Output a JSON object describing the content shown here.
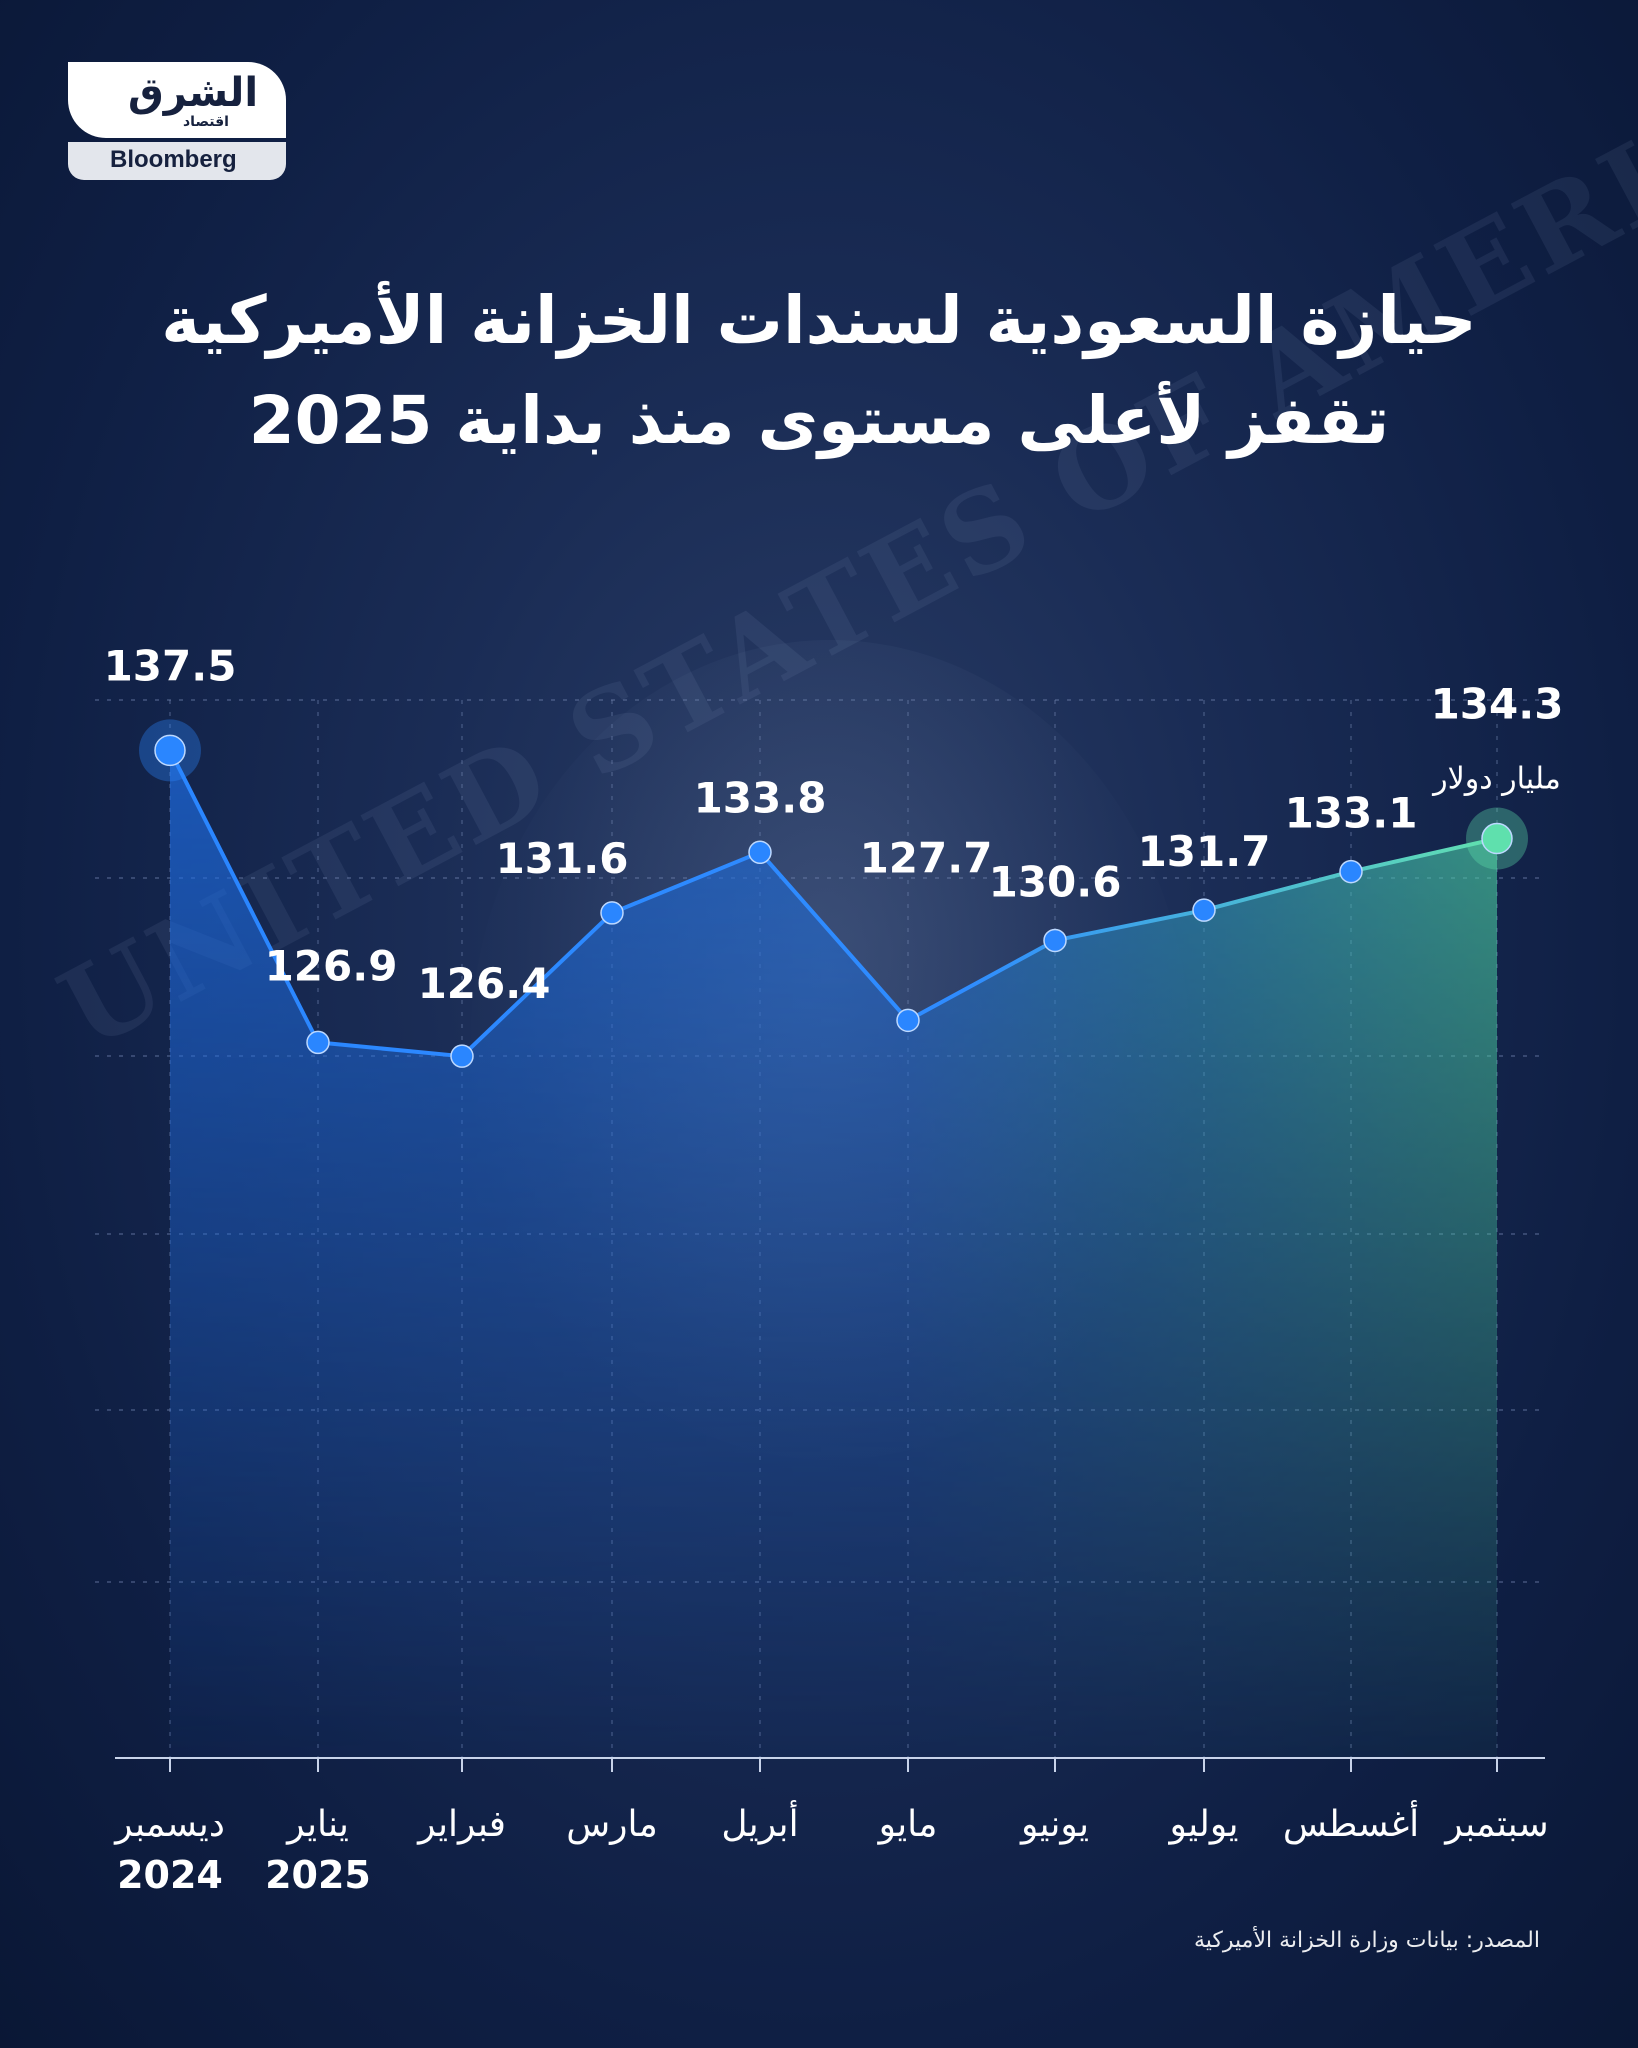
{
  "logo": {
    "arabic": "الشرق",
    "sub": "اقتصاد",
    "english": "Bloomberg"
  },
  "background": {
    "banknote_text": "UNITED STATES OF AMERICA"
  },
  "title": {
    "line1": "حيازة السعودية لسندات الخزانة الأميركية",
    "line2": "تقفز لأعلى مستوى منذ بداية 2025"
  },
  "source": "المصدر: بيانات وزارة الخزانة الأميركية",
  "chart_data": {
    "type": "line",
    "categories": [
      "ديسمبر",
      "يناير",
      "فبراير",
      "مارس",
      "أبريل",
      "مايو",
      "يونيو",
      "يوليو",
      "أغسطس",
      "سبتمبر"
    ],
    "category_years": [
      "2024",
      "2025",
      "",
      "",
      "",
      "",
      "",
      "",
      "",
      ""
    ],
    "values": [
      137.5,
      126.9,
      126.4,
      131.6,
      133.8,
      127.7,
      130.6,
      131.7,
      133.1,
      134.3
    ],
    "value_labels": [
      "137.5",
      "126.9",
      "126.4",
      "131.6",
      "133.8",
      "127.7",
      "130.6",
      "131.7",
      "133.1",
      "134.3"
    ],
    "unit_label": "مليار دولار",
    "title": "حيازة السعودية لسندات الخزانة الأميركية تقفز لأعلى مستوى منذ بداية 2025",
    "xlabel": "",
    "ylabel": "",
    "ylim": [
      125,
      140
    ],
    "grid": true,
    "colors": {
      "line_start": "#2a86ff",
      "line_end": "#62e0b0",
      "grid": "#6f82ad"
    }
  }
}
